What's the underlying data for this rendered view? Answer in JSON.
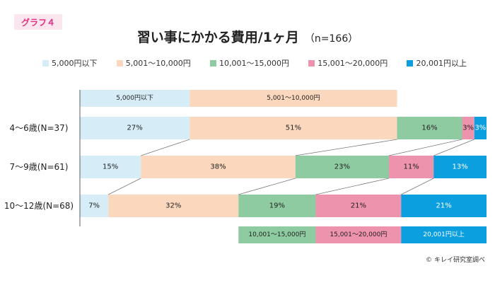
{
  "badge": "グラフ４",
  "title": "習い事にかかる費用/1ヶ月",
  "subtitle": "（n=166）",
  "credit": "© キレイ研究室調べ",
  "chart_data": {
    "type": "bar",
    "orientation": "horizontal",
    "stacked": true,
    "normalized": true,
    "legend_position": "top",
    "grid": false,
    "categories": [
      "4～6歳(N=37)",
      "7～9歳(N=61)",
      "10～12歳(N=68)"
    ],
    "series": [
      {
        "name": "5,000円以下",
        "color": "#d6ecf7",
        "values": [
          27,
          15,
          7
        ]
      },
      {
        "name": "5,001～10,000円",
        "color": "#fad7bd",
        "values": [
          51,
          38,
          32
        ]
      },
      {
        "name": "10,001～15,000円",
        "color": "#8ecba1",
        "values": [
          16,
          23,
          19
        ]
      },
      {
        "name": "15,001～20,000円",
        "color": "#ee93ad",
        "values": [
          3,
          11,
          21
        ]
      },
      {
        "name": "20,001円以上",
        "color": "#0c9fe0",
        "values": [
          3,
          13,
          21
        ]
      }
    ],
    "header_labels": [
      "5,000円以下",
      "5,001～10,000円"
    ],
    "footer_labels": [
      "10,001～15,000円",
      "15,001～20,000円",
      "20,001円以上"
    ]
  }
}
